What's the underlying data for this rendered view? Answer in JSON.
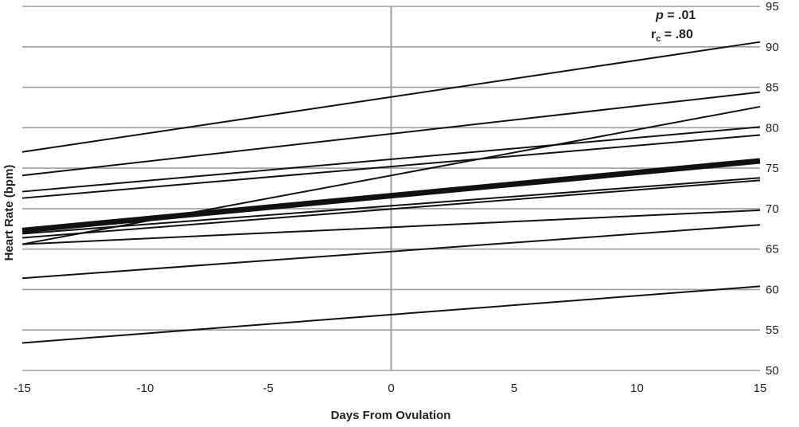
{
  "chart_data": {
    "type": "line",
    "title": "",
    "xlabel": "Days From Ovulation",
    "ylabel": "Heart Rate (bpm)",
    "xlim": [
      -15,
      15
    ],
    "ylim": [
      50,
      95
    ],
    "x_ticks": [
      "-15",
      "-10",
      "-5",
      "0",
      "5",
      "10",
      "15"
    ],
    "y_ticks": [
      "50",
      "55",
      "60",
      "65",
      "70",
      "75",
      "80",
      "85",
      "90",
      "95"
    ],
    "grid": "horizontal",
    "annotations": {
      "p_symbol": "p",
      "p_value": " = .01",
      "rc_symbol": "r",
      "rc_subscript": "c",
      "rc_value": " = .80"
    },
    "series": [
      {
        "x": [
          -15,
          15
        ],
        "y": [
          77.0,
          90.6
        ]
      },
      {
        "x": [
          -15,
          15
        ],
        "y": [
          74.1,
          84.4
        ]
      },
      {
        "x": [
          -15,
          15
        ],
        "y": [
          65.6,
          82.6
        ]
      },
      {
        "x": [
          -15,
          15
        ],
        "y": [
          72.1,
          80.1
        ]
      },
      {
        "x": [
          -15,
          15
        ],
        "y": [
          71.3,
          79.1
        ]
      },
      {
        "x": [
          -15,
          15
        ],
        "y": [
          66.9,
          73.8
        ]
      },
      {
        "x": [
          -15,
          15
        ],
        "y": [
          66.4,
          73.5
        ]
      },
      {
        "x": [
          -15,
          15
        ],
        "y": [
          65.6,
          69.8
        ]
      },
      {
        "x": [
          -15,
          15
        ],
        "y": [
          61.4,
          68.0
        ]
      },
      {
        "x": [
          -15,
          15
        ],
        "y": [
          53.4,
          60.4
        ]
      },
      {
        "x": [
          -15,
          15
        ],
        "y": [
          67.3,
          75.9
        ],
        "emphasis": "mean"
      }
    ]
  }
}
